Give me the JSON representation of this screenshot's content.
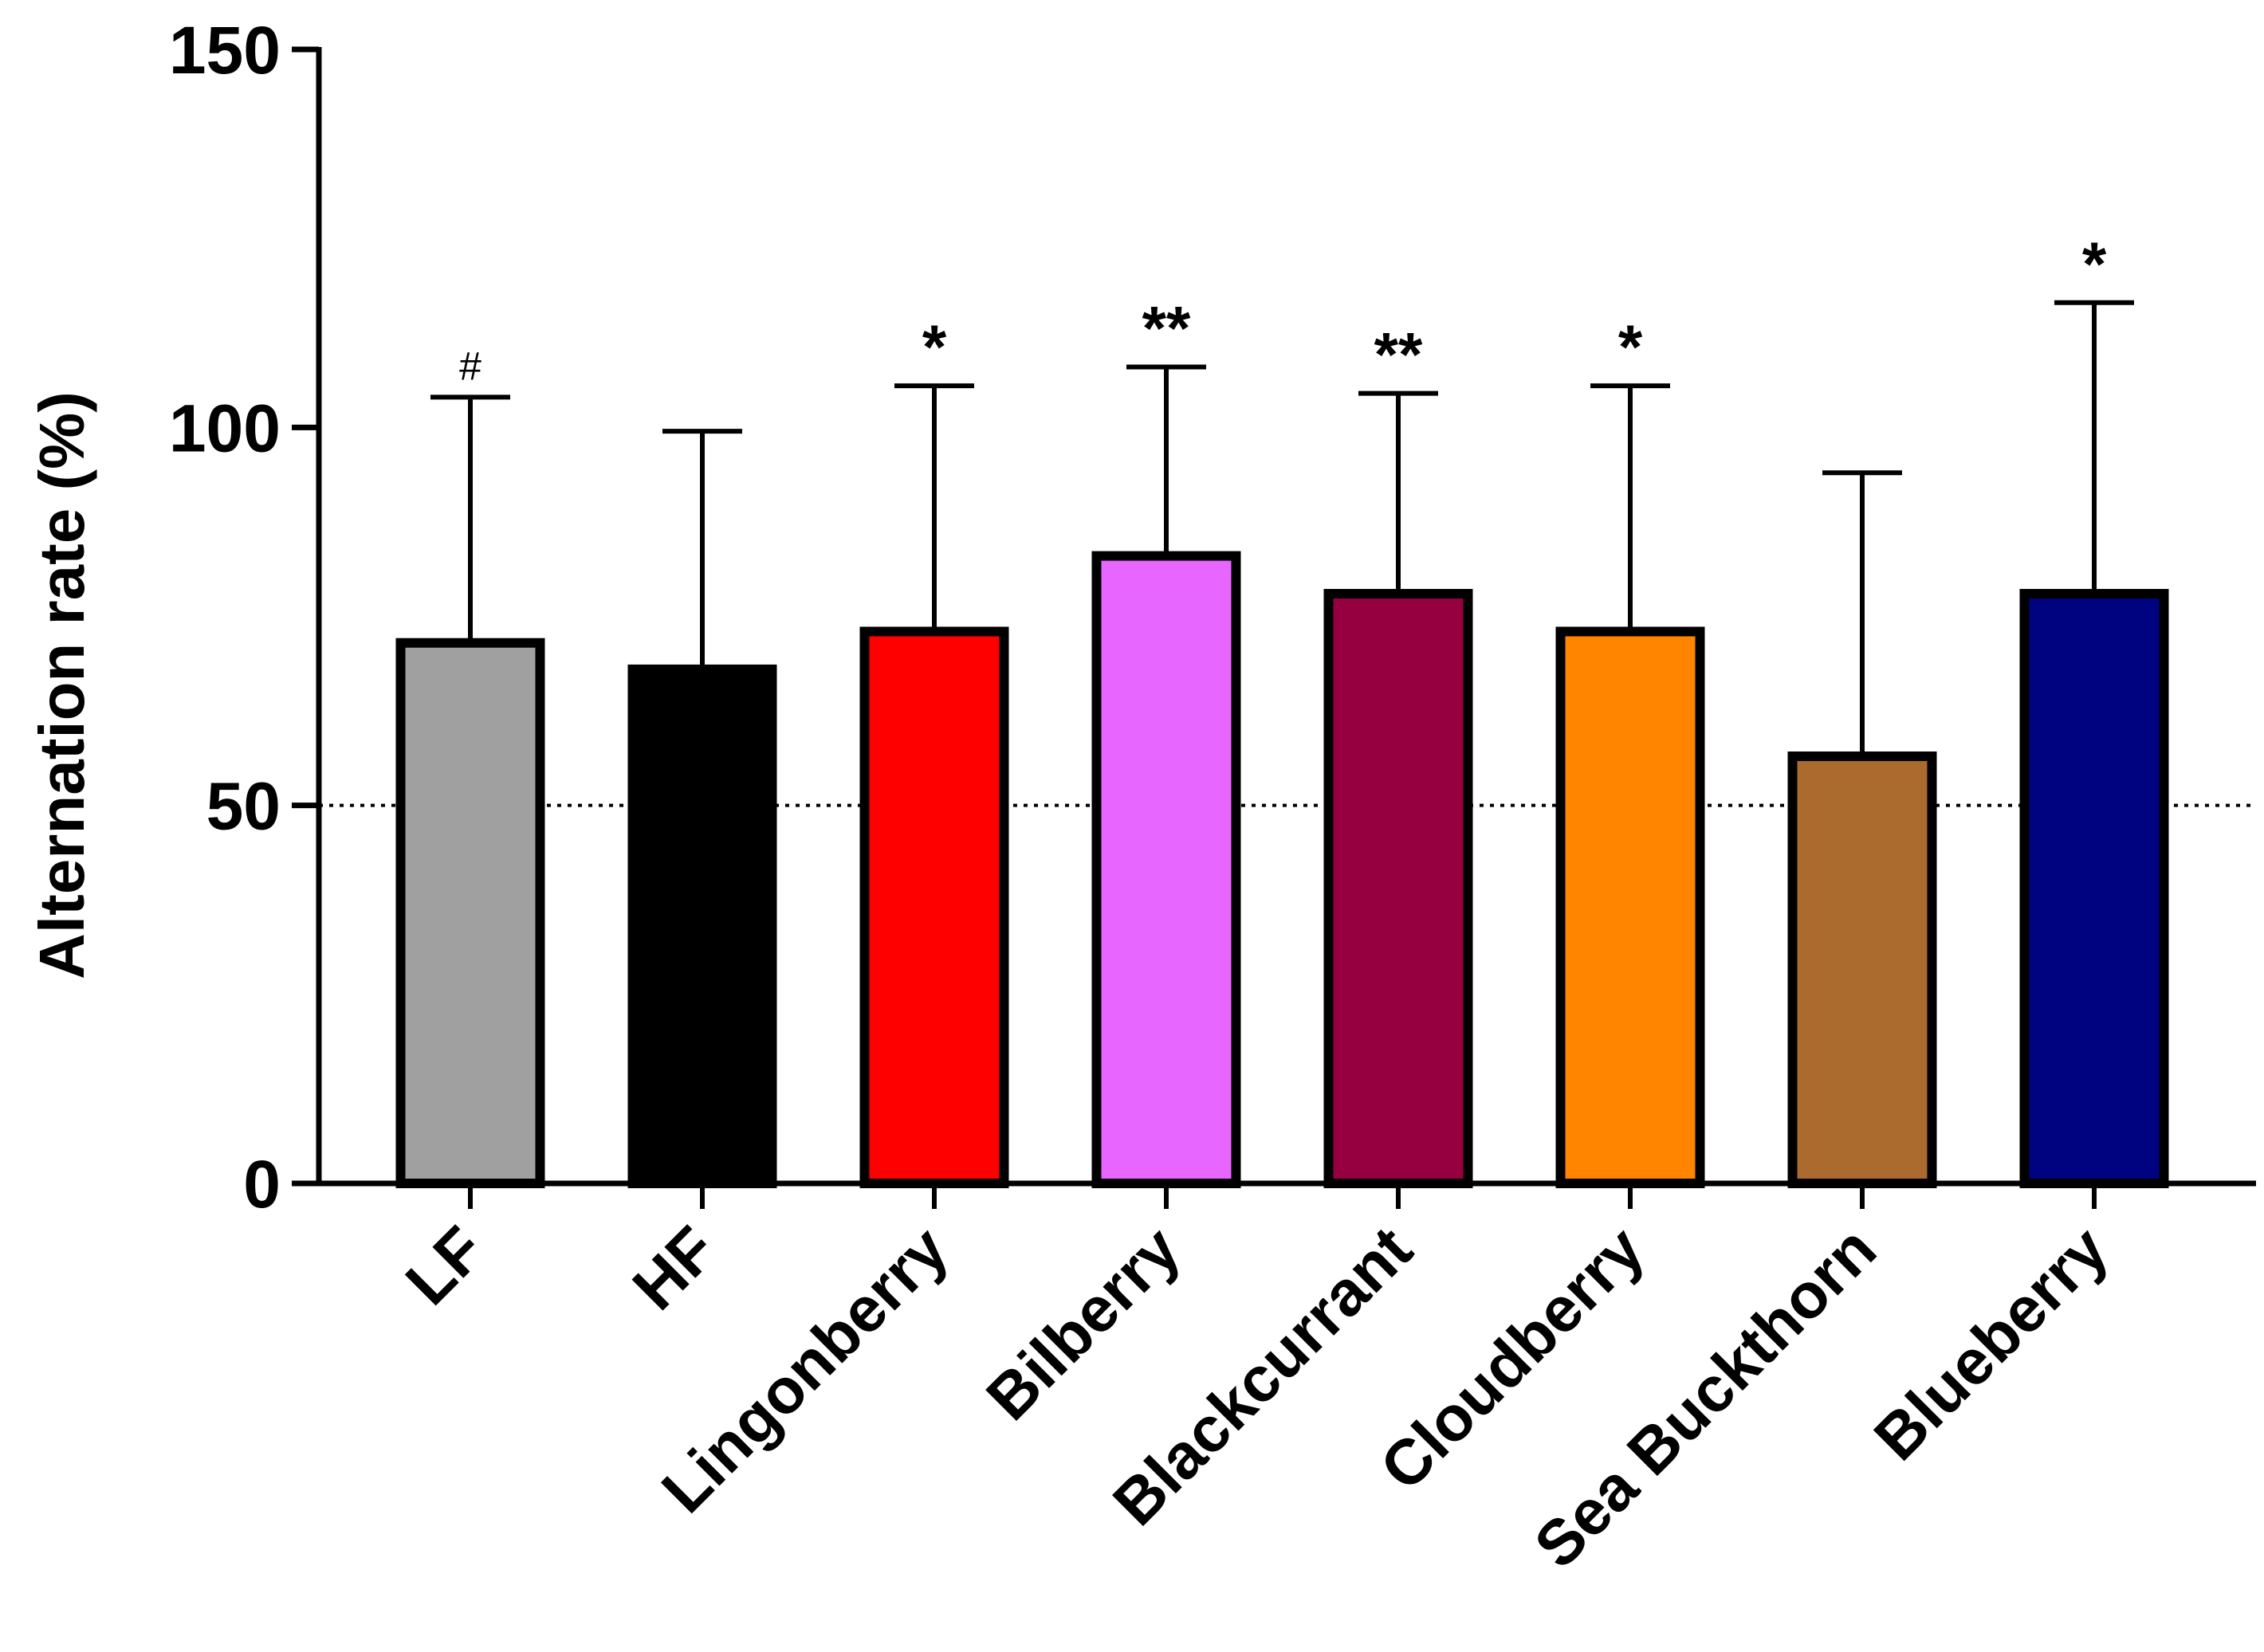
{
  "chart_data": {
    "type": "bar",
    "title": "",
    "xlabel": "",
    "ylabel": "Alternation rate (%)",
    "ylim": [
      0,
      150
    ],
    "yticks": [
      0,
      50,
      100,
      150
    ],
    "reference_line": 50,
    "categories": [
      "LF",
      "HF",
      "Lingonberry",
      "Bilberry",
      "Blackcurrant",
      "Cloudberry",
      "Sea Buckthorn",
      "Blueberry"
    ],
    "values": [
      71.5,
      68,
      73,
      83,
      78,
      73,
      56.5,
      78
    ],
    "error_upper": [
      104,
      99.5,
      105.5,
      108,
      104.5,
      105.5,
      94,
      116.5
    ],
    "significance": [
      "#",
      "",
      "*",
      "**",
      "**",
      "*",
      "",
      "*"
    ],
    "colors": [
      "#a0a0a0",
      "#000000",
      "#ff0000",
      "#e766ff",
      "#960040",
      "#ff8400",
      "#ab6a2e",
      "#00037f"
    ]
  }
}
